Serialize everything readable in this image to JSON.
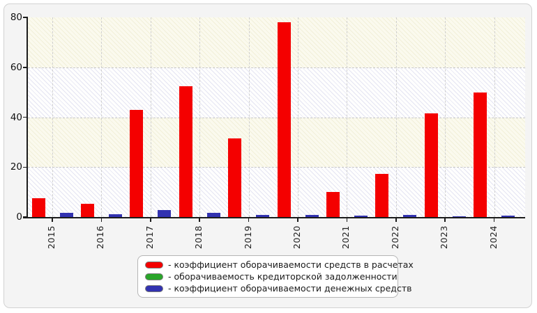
{
  "chart_data": {
    "type": "bar",
    "title": "",
    "xlabel": "",
    "ylabel": "",
    "categories": [
      "2015",
      "2016",
      "2017",
      "2018",
      "2019",
      "2020",
      "2021",
      "2022",
      "2023",
      "2024"
    ],
    "series": [
      {
        "name": "коэффициент оборачиваемости средств в расчетах",
        "color": "#f40000",
        "values": [
          7.5,
          5.3,
          43.0,
          52.5,
          31.5,
          78.0,
          10.0,
          17.3,
          41.5,
          49.8
        ]
      },
      {
        "name": "оборачиваемость кредиторской задолженности",
        "color": "#2aa52a",
        "values": [
          0,
          0,
          0,
          0,
          0,
          0,
          0,
          0,
          0,
          0
        ]
      },
      {
        "name": "коэффициент оборачиваемости денежных средств",
        "color": "#3232b0",
        "values": [
          1.6,
          1.1,
          2.8,
          1.7,
          0.9,
          0.8,
          0.6,
          0.7,
          0.4,
          0.6
        ]
      }
    ],
    "ylim": [
      0,
      80
    ],
    "yticks": [
      0,
      20,
      40,
      60,
      80
    ],
    "grid": true,
    "legend_position": "bottom",
    "legend_prefix": "- "
  }
}
